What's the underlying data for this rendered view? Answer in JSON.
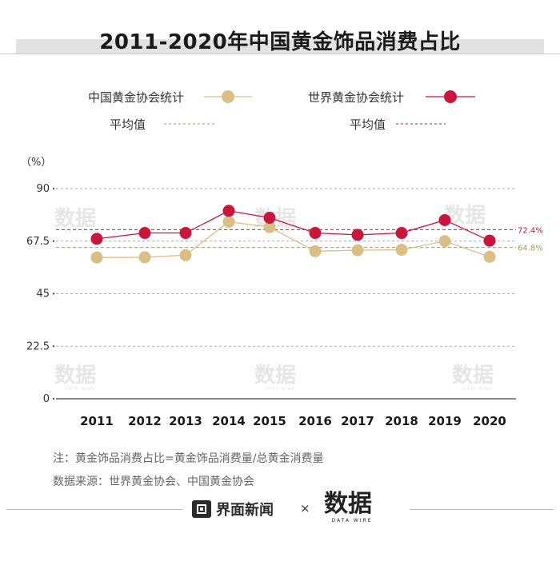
{
  "title": "2011-2020年中国黄金饰品消费占比",
  "chart_data": {
    "type": "line",
    "x": [
      "2011",
      "2012",
      "2013",
      "2014",
      "2015",
      "2016",
      "2017",
      "2018",
      "2019",
      "2020"
    ],
    "series": [
      {
        "name": "中国黄金协会统计",
        "color": "#d9bf86",
        "values": [
          60.5,
          60.6,
          61.5,
          75.8,
          73.5,
          63.2,
          63.6,
          63.8,
          67.5,
          60.8
        ],
        "average": 64.8,
        "average_label": "64.8%",
        "average_legend": "平均值"
      },
      {
        "name": "世界黄金协会统计",
        "color": "#c8163c",
        "values": [
          68.5,
          71.0,
          71.0,
          80.5,
          77.5,
          71.0,
          70.2,
          71.0,
          76.5,
          67.7
        ],
        "average": 72.4,
        "average_label": "72.4%",
        "average_legend": "平均值"
      }
    ],
    "ylabel": "（%）",
    "ylim": [
      0,
      90
    ],
    "yticks": [
      "0",
      "22.5",
      "45",
      "67.5",
      "90"
    ],
    "ytick_values": [
      0,
      22.5,
      45,
      67.5,
      90
    ],
    "grid": true,
    "legend_position": "top"
  },
  "notes": {
    "formula": "注：黄金饰品消费占比=黄金饰品消费量/总黄金消费量",
    "source": "数据来源：世界黄金协会、中国黄金协会"
  },
  "footer": {
    "brand": "界面新闻",
    "times": "×",
    "logo_text": "数据",
    "logo_sub": "DATA WIRE",
    "brand_icon": "jiemian-logo-icon"
  },
  "watermark": {
    "text": "数据",
    "sub": "DATA WIRE"
  }
}
